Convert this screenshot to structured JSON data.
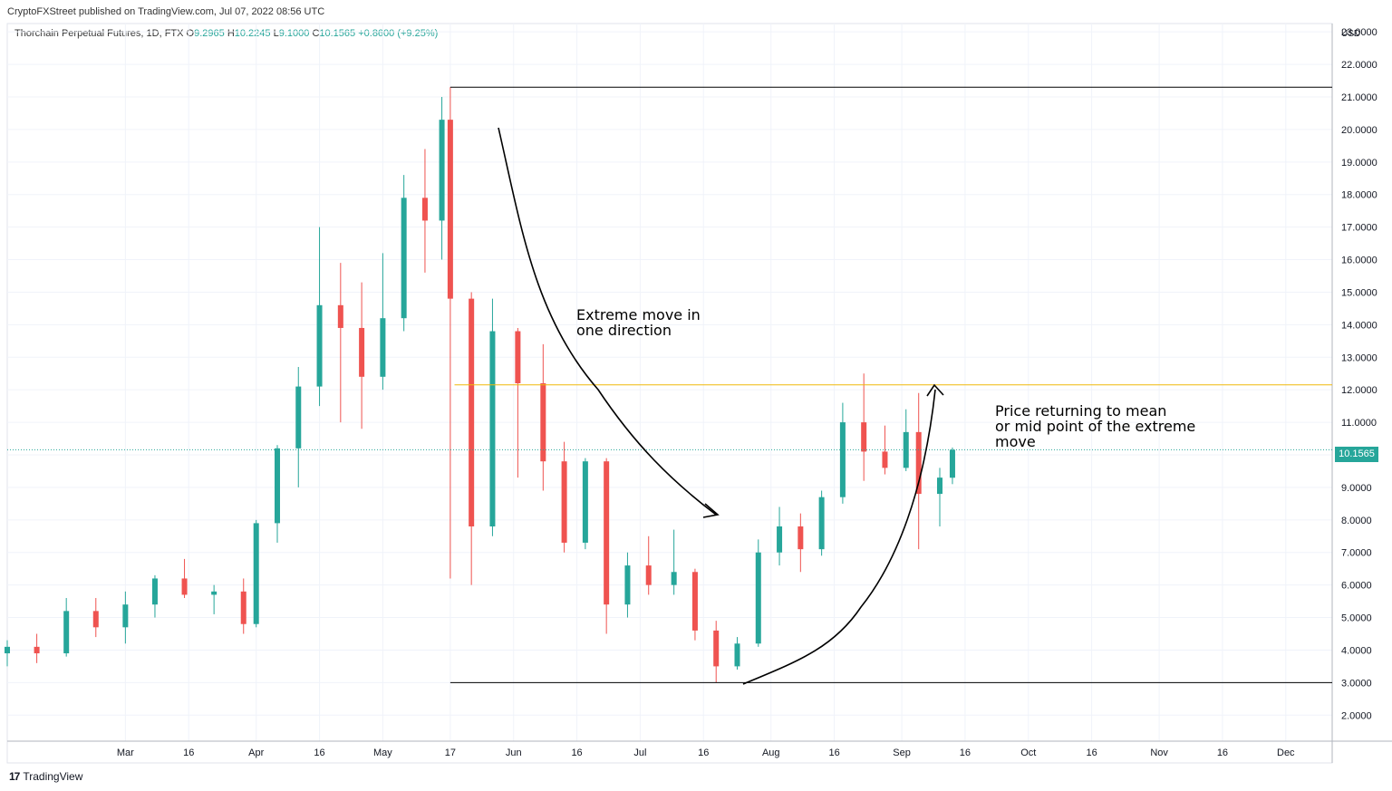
{
  "publisher": "CryptoFXStreet published on TradingView.com, Jul 07, 2022 08:56 UTC",
  "symbol": {
    "name": "Thorchain Perpetual Futures, 1D, FTX",
    "o_label": "O",
    "o": "9.2965",
    "h_label": "H",
    "h": "10.2245",
    "l_label": "L",
    "l": "9.1000",
    "c_label": "C",
    "c": "10.1565",
    "change": "+0.8600 (+9.25%)"
  },
  "brand": "TradingView",
  "colors": {
    "up": "#26a69a",
    "down": "#ef5350",
    "mid_line": "#f0b90b",
    "level_line": "#000000",
    "grid": "#f0f3fa"
  },
  "annotations": {
    "a1": [
      "Extreme move in",
      "one direction"
    ],
    "a2": [
      "Price returning to mean",
      "or mid point of the extreme",
      "move"
    ]
  },
  "chart_data": {
    "type": "candlestick",
    "currency": "USD",
    "last_price": "10.1565",
    "y_ticks": [
      "2.0000",
      "3.0000",
      "4.0000",
      "5.0000",
      "6.0000",
      "7.0000",
      "8.0000",
      "9.0000",
      "10.0000",
      "11.0000",
      "12.0000",
      "13.0000",
      "14.0000",
      "15.0000",
      "16.0000",
      "17.0000",
      "18.0000",
      "19.0000",
      "20.0000",
      "21.0000",
      "22.0000",
      "23.0000"
    ],
    "ylim": [
      1.2,
      23.2
    ],
    "x_ticks": [
      {
        "label": "Mar",
        "date": "2022-03-01"
      },
      {
        "label": "16",
        "date": "2022-03-16"
      },
      {
        "label": "Apr",
        "date": "2022-04-01"
      },
      {
        "label": "16",
        "date": "2022-04-16"
      },
      {
        "label": "May",
        "date": "2022-05-01"
      },
      {
        "label": "17",
        "date": "2022-05-17"
      },
      {
        "label": "Jun",
        "date": "2022-06-01"
      },
      {
        "label": "16",
        "date": "2022-06-16"
      },
      {
        "label": "Jul",
        "date": "2022-07-01"
      },
      {
        "label": "16",
        "date": "2022-07-16"
      },
      {
        "label": "Aug",
        "date": "2022-08-01"
      },
      {
        "label": "16",
        "date": "2022-08-16"
      },
      {
        "label": "Sep",
        "date": "2022-09-01"
      },
      {
        "label": "16",
        "date": "2022-09-16"
      },
      {
        "label": "Oct",
        "date": "2022-10-01"
      },
      {
        "label": "16",
        "date": "2022-10-16"
      },
      {
        "label": "Nov",
        "date": "2022-11-01"
      },
      {
        "label": "16",
        "date": "2022-11-16"
      },
      {
        "label": "Dec",
        "date": "2022-12-01"
      }
    ],
    "horizontal_lines": [
      {
        "price": 21.3,
        "from": "2022-05-17",
        "style": "solid",
        "color": "#000000"
      },
      {
        "price": 12.15,
        "from": "2022-05-18",
        "style": "solid",
        "color": "#f0b90b"
      },
      {
        "price": 3.0,
        "from": "2022-05-17",
        "style": "solid",
        "color": "#000000"
      }
    ],
    "series": [
      {
        "name": "",
        "points": [
          {
            "date": "2022-02-01",
            "o": 3.9,
            "h": 4.3,
            "l": 3.5,
            "c": 4.1
          },
          {
            "date": "2022-02-08",
            "o": 4.1,
            "h": 4.5,
            "l": 3.6,
            "c": 3.9
          },
          {
            "date": "2022-02-15",
            "o": 3.9,
            "h": 5.6,
            "l": 3.8,
            "c": 5.2
          },
          {
            "date": "2022-02-22",
            "o": 5.2,
            "h": 5.6,
            "l": 4.4,
            "c": 4.7
          },
          {
            "date": "2022-03-01",
            "o": 4.7,
            "h": 5.8,
            "l": 4.2,
            "c": 5.4
          },
          {
            "date": "2022-03-08",
            "o": 5.4,
            "h": 6.3,
            "l": 5.0,
            "c": 6.2
          },
          {
            "date": "2022-03-15",
            "o": 6.2,
            "h": 6.8,
            "l": 5.6,
            "c": 5.7
          },
          {
            "date": "2022-03-22",
            "o": 5.7,
            "h": 6.0,
            "l": 5.1,
            "c": 5.8
          },
          {
            "date": "2022-03-29",
            "o": 5.8,
            "h": 6.2,
            "l": 4.5,
            "c": 4.8
          },
          {
            "date": "2022-04-01",
            "o": 4.8,
            "h": 8.0,
            "l": 4.7,
            "c": 7.9
          },
          {
            "date": "2022-04-06",
            "o": 7.9,
            "h": 10.3,
            "l": 7.3,
            "c": 10.2
          },
          {
            "date": "2022-04-11",
            "o": 10.2,
            "h": 12.7,
            "l": 9.0,
            "c": 12.1
          },
          {
            "date": "2022-04-16",
            "o": 12.1,
            "h": 17.0,
            "l": 11.5,
            "c": 14.6
          },
          {
            "date": "2022-04-21",
            "o": 14.6,
            "h": 15.9,
            "l": 11.0,
            "c": 13.9
          },
          {
            "date": "2022-04-26",
            "o": 13.9,
            "h": 15.3,
            "l": 10.8,
            "c": 12.4
          },
          {
            "date": "2022-05-01",
            "o": 12.4,
            "h": 16.2,
            "l": 12.0,
            "c": 14.2
          },
          {
            "date": "2022-05-06",
            "o": 14.2,
            "h": 18.6,
            "l": 13.8,
            "c": 17.9
          },
          {
            "date": "2022-05-11",
            "o": 17.9,
            "h": 19.4,
            "l": 15.6,
            "c": 17.2
          },
          {
            "date": "2022-05-15",
            "o": 17.2,
            "h": 21.0,
            "l": 16.0,
            "c": 20.3
          },
          {
            "date": "2022-05-17",
            "o": 20.3,
            "h": 21.3,
            "l": 6.2,
            "c": 14.8
          },
          {
            "date": "2022-05-22",
            "o": 14.8,
            "h": 15.0,
            "l": 6.0,
            "c": 7.8
          },
          {
            "date": "2022-05-27",
            "o": 7.8,
            "h": 14.8,
            "l": 7.5,
            "c": 13.8
          },
          {
            "date": "2022-06-02",
            "o": 13.8,
            "h": 13.9,
            "l": 9.3,
            "c": 12.2
          },
          {
            "date": "2022-06-08",
            "o": 12.2,
            "h": 13.4,
            "l": 8.9,
            "c": 9.8
          },
          {
            "date": "2022-06-13",
            "o": 9.8,
            "h": 10.4,
            "l": 7.0,
            "c": 7.3
          },
          {
            "date": "2022-06-18",
            "o": 7.3,
            "h": 9.9,
            "l": 7.1,
            "c": 9.8
          },
          {
            "date": "2022-06-23",
            "o": 9.8,
            "h": 9.9,
            "l": 4.5,
            "c": 5.4
          },
          {
            "date": "2022-06-28",
            "o": 5.4,
            "h": 7.0,
            "l": 5.0,
            "c": 6.6
          },
          {
            "date": "2022-07-03",
            "o": 6.6,
            "h": 7.5,
            "l": 5.7,
            "c": 6.0
          },
          {
            "date": "2022-07-09",
            "o": 6.0,
            "h": 7.7,
            "l": 5.7,
            "c": 6.4
          },
          {
            "date": "2022-07-14",
            "o": 6.4,
            "h": 6.5,
            "l": 4.3,
            "c": 4.6
          },
          {
            "date": "2022-07-19",
            "o": 4.6,
            "h": 4.9,
            "l": 3.0,
            "c": 3.5
          },
          {
            "date": "2022-07-24",
            "o": 3.5,
            "h": 4.4,
            "l": 3.4,
            "c": 4.2
          },
          {
            "date": "2022-07-29",
            "o": 4.2,
            "h": 7.4,
            "l": 4.1,
            "c": 7.0
          },
          {
            "date": "2022-08-03",
            "o": 7.0,
            "h": 8.4,
            "l": 6.6,
            "c": 7.8
          },
          {
            "date": "2022-08-08",
            "o": 7.8,
            "h": 8.2,
            "l": 6.4,
            "c": 7.1
          },
          {
            "date": "2022-08-13",
            "o": 7.1,
            "h": 8.9,
            "l": 6.9,
            "c": 8.7
          },
          {
            "date": "2022-08-18",
            "o": 8.7,
            "h": 11.6,
            "l": 8.5,
            "c": 11.0
          },
          {
            "date": "2022-08-23",
            "o": 11.0,
            "h": 12.5,
            "l": 9.2,
            "c": 10.1
          },
          {
            "date": "2022-08-28",
            "o": 10.1,
            "h": 10.9,
            "l": 9.4,
            "c": 9.6
          },
          {
            "date": "2022-09-02",
            "o": 9.6,
            "h": 11.4,
            "l": 9.5,
            "c": 10.7
          },
          {
            "date": "2022-09-05",
            "o": 10.7,
            "h": 11.9,
            "l": 7.1,
            "c": 8.8
          },
          {
            "date": "2022-09-10",
            "o": 8.8,
            "h": 9.6,
            "l": 7.8,
            "c": 9.3
          },
          {
            "date": "2022-09-13",
            "o": 9.2965,
            "h": 10.2245,
            "l": 9.1,
            "c": 10.1565
          }
        ]
      }
    ]
  }
}
